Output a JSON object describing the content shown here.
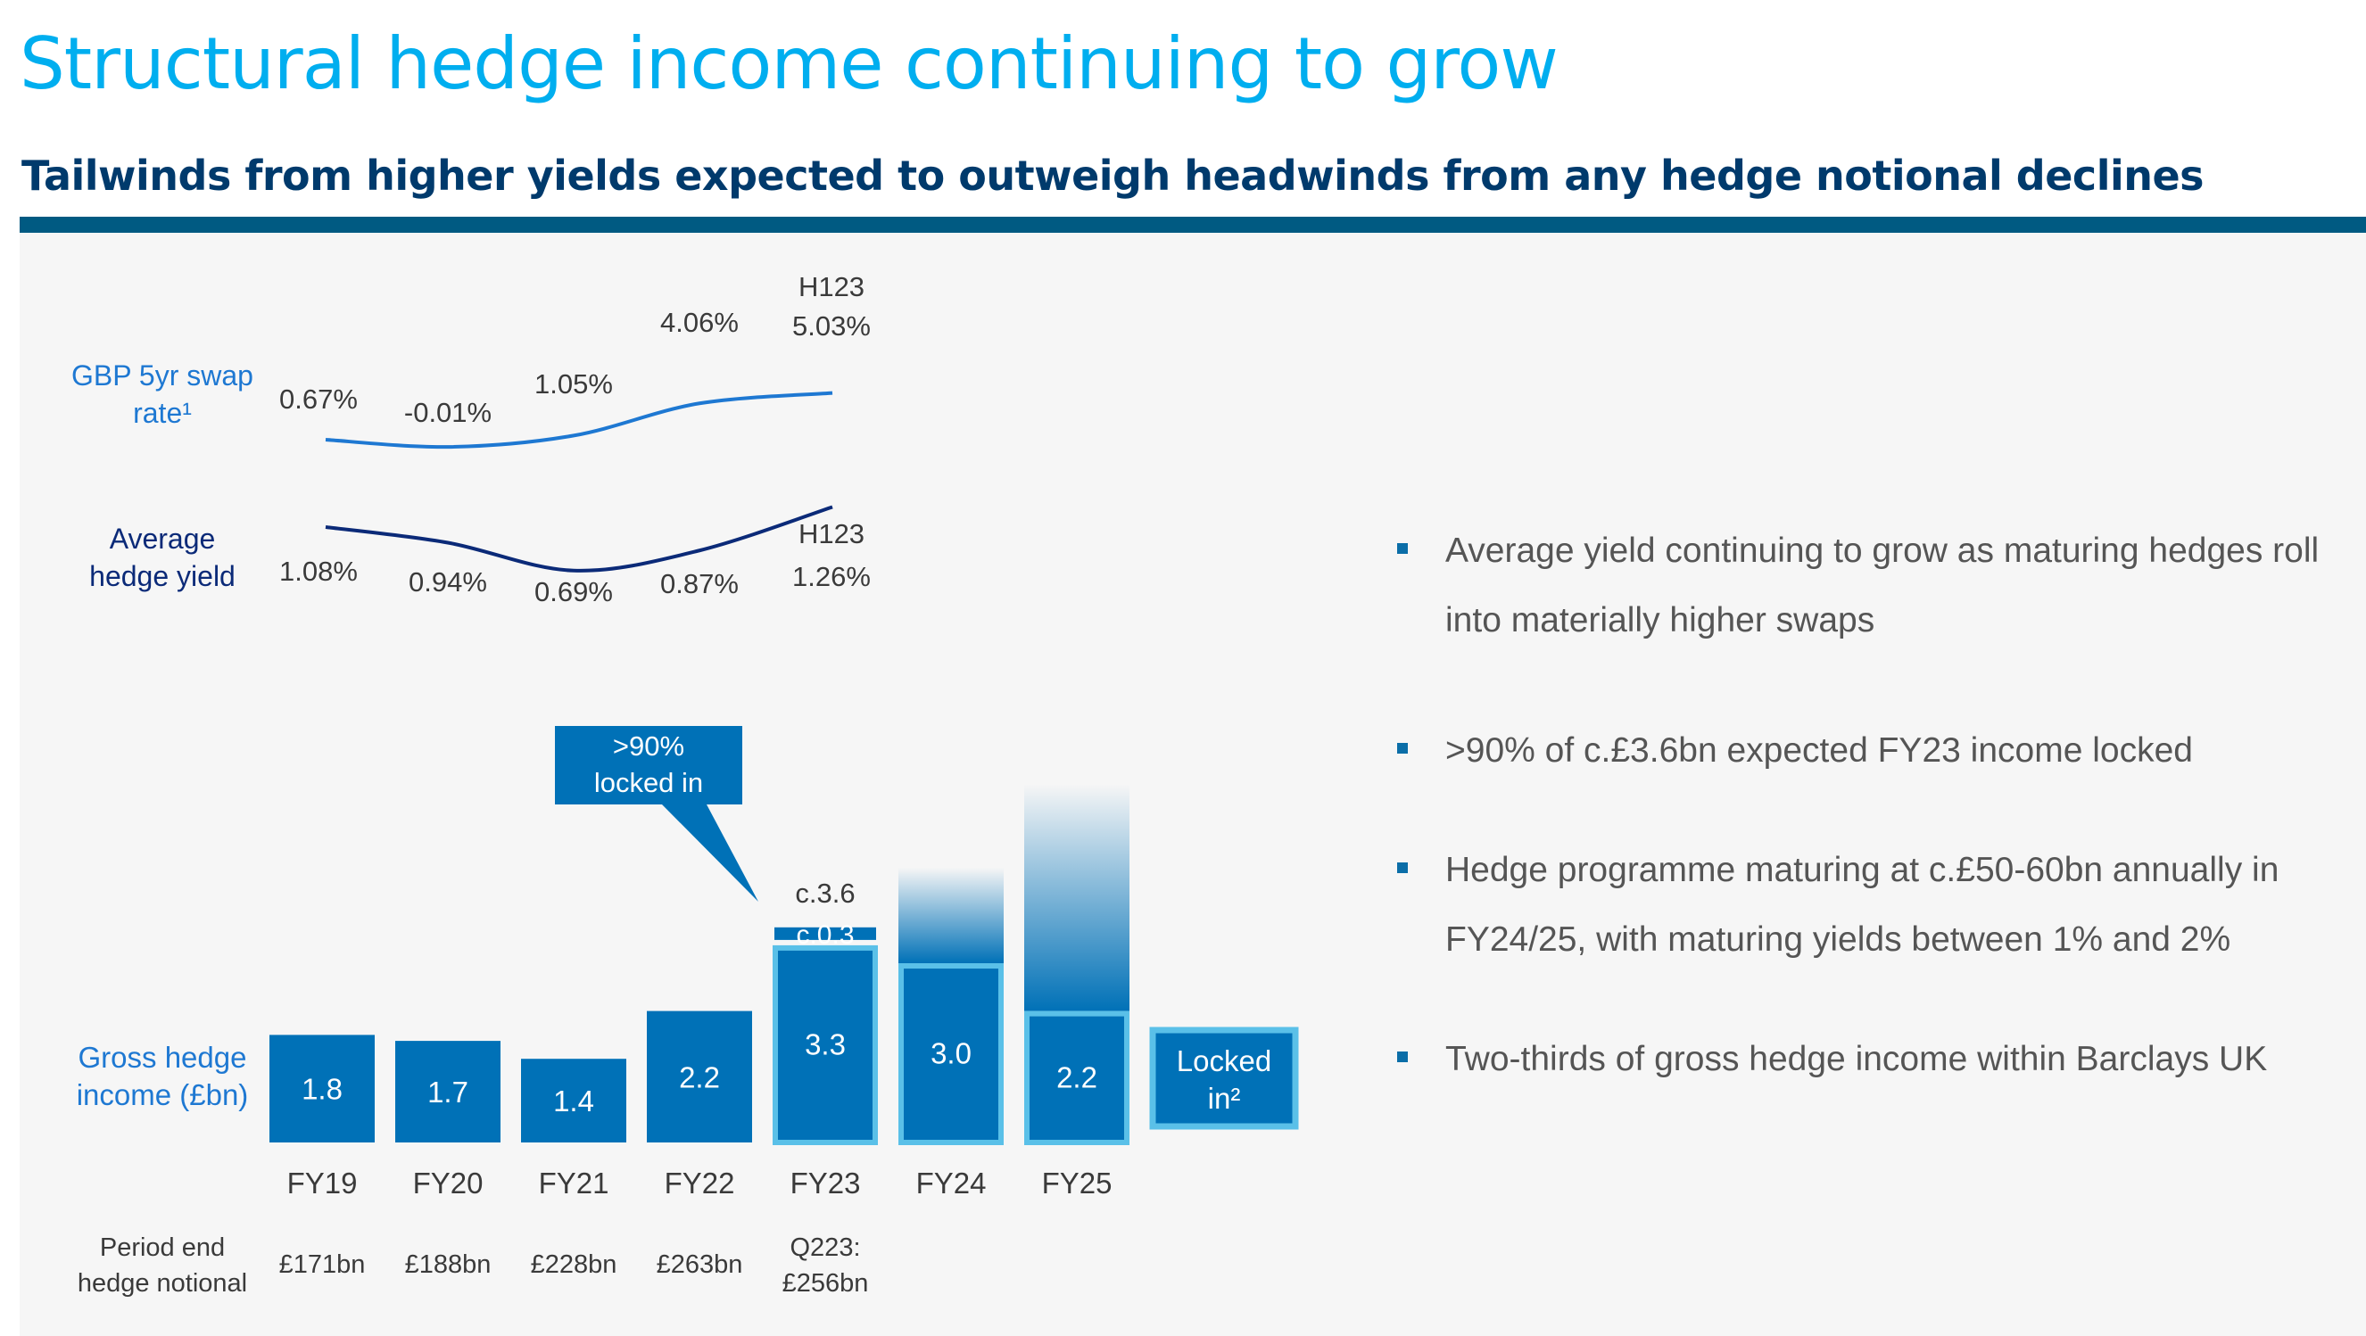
{
  "title": "Structural hedge income continuing to grow",
  "subtitle": "Tailwinds from higher yields expected to outweigh headwinds from any hedge notional declines",
  "colors": {
    "title": "#00aeef",
    "subtitle": "#003a6c",
    "rule": "#005a82",
    "swap_line": "#1e78d2",
    "hedge_yield_line": "#0b2a78",
    "bar": "#0071b7",
    "bar_outline_locked": "#5ac0e8",
    "callout": "#0071b7"
  },
  "chart_data": {
    "type": "bar",
    "categories": [
      "FY19",
      "FY20",
      "FY21",
      "FY22",
      "FY23",
      "FY24",
      "FY25"
    ],
    "notional_label": "Period end hedge notional",
    "notional": [
      "£171bn",
      "£188bn",
      "£228bn",
      "£263bn",
      "Q223: £256bn",
      "",
      ""
    ],
    "bars": {
      "series_label": "Gross hedge income (£bn)",
      "values": [
        1.8,
        1.7,
        1.4,
        2.2,
        3.3,
        3.0,
        2.2
      ],
      "labels": [
        "1.8",
        "1.7",
        "1.4",
        "2.2",
        "3.3",
        "3.0",
        "2.2"
      ],
      "locked": [
        false,
        false,
        false,
        false,
        true,
        true,
        true
      ],
      "fy23_additional": 0.3,
      "fy23_additional_label": "c.0.3",
      "fy23_total_label": "c.3.6",
      "fy24_unlocked_to": 4.6,
      "fy25_unlocked_to": 6.0,
      "ylim": [
        0,
        6.0
      ]
    },
    "callout": "> 90% locked in",
    "callout_lines": [
      ">90%",
      "locked in"
    ],
    "legend": {
      "locked_label_lines": [
        "Locked",
        "in²"
      ]
    },
    "lines": [
      {
        "name": "GBP 5yr swap rate¹",
        "label_lines": [
          "GBP 5yr swap",
          "rate¹"
        ],
        "x": [
          "FY19",
          "FY20",
          "FY21",
          "FY22",
          "H123"
        ],
        "values": [
          0.67,
          -0.01,
          1.05,
          4.06,
          5.03
        ],
        "labels": [
          "0.67%",
          "-0.01%",
          "1.05%",
          "4.06%",
          "5.03%"
        ],
        "last_point_header": "H123"
      },
      {
        "name": "Average hedge yield",
        "label_lines": [
          "Average",
          "hedge yield"
        ],
        "x": [
          "FY19",
          "FY20",
          "FY21",
          "FY22",
          "H123"
        ],
        "values": [
          1.08,
          0.94,
          0.69,
          0.87,
          1.26
        ],
        "labels": [
          "1.08%",
          "0.94%",
          "0.69%",
          "0.87%",
          "1.26%"
        ],
        "last_point_header": "H123"
      }
    ]
  },
  "bullets": [
    "Average yield continuing to grow as maturing hedges roll into materially higher swaps",
    ">90% of c.£3.6bn expected FY23 income locked",
    "Hedge programme maturing at c.£50-60bn annually in FY24/25, with maturing yields between 1% and 2%",
    "Two-thirds of gross hedge income within Barclays UK"
  ]
}
